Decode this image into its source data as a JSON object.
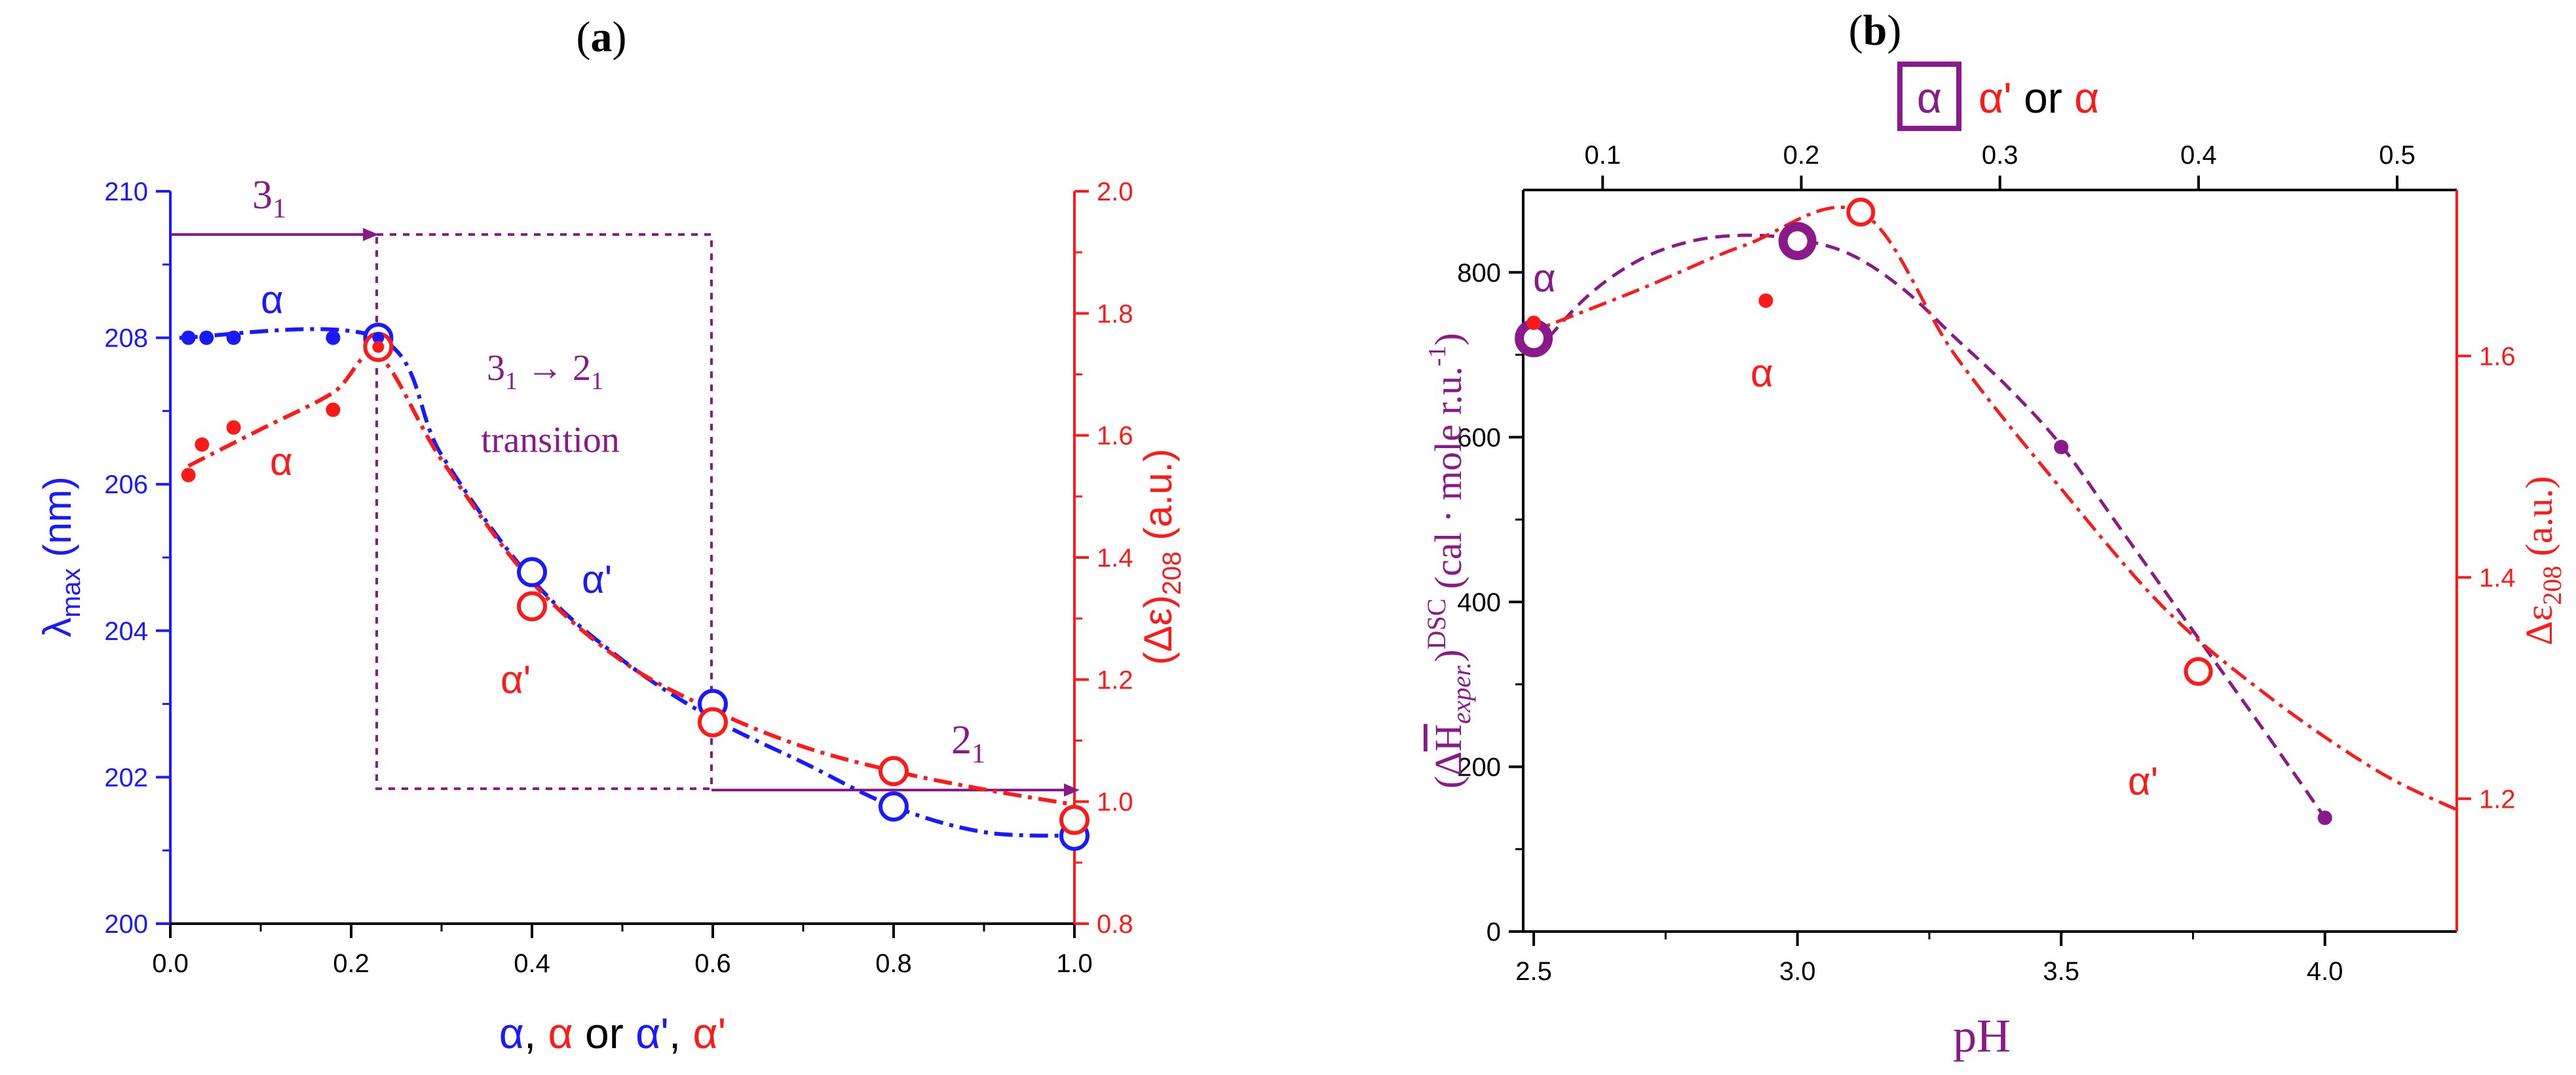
{
  "colors": {
    "blue": "#1a1aff",
    "red": "#ff1a1a",
    "purple": "#8a1a8a",
    "black": "#000000"
  },
  "chart_data": [
    {
      "type": "line",
      "title": "(a)",
      "title_bold": "a",
      "x_axis": {
        "range": [
          0,
          1.0
        ],
        "ticks": [
          "0.0",
          "0.2",
          "0.4",
          "0.6",
          "0.8",
          "1.0"
        ],
        "tick_values": [
          0,
          0.2,
          0.4,
          0.6,
          0.8,
          1.0
        ],
        "label_parts": [
          "α",
          ", ",
          "α",
          " or ",
          "α'",
          ", ",
          "α'"
        ]
      },
      "y_left": {
        "range": [
          200,
          210
        ],
        "ticks": [
          "200",
          "202",
          "204",
          "206",
          "208",
          "210"
        ],
        "tick_values": [
          200,
          202,
          204,
          206,
          208,
          210
        ],
        "label_main": "λ",
        "label_sub": "max",
        "label_unit": " (nm)"
      },
      "y_right": {
        "range": [
          0.8,
          2.0
        ],
        "ticks": [
          "0.8",
          "1.0",
          "1.2",
          "1.4",
          "1.6",
          "1.8",
          "2.0"
        ],
        "tick_values": [
          0.8,
          1.0,
          1.2,
          1.4,
          1.6,
          1.8,
          2.0
        ],
        "label_pre": "(Δε)",
        "label_sub": "208",
        "label_unit": " (a.u.)"
      },
      "series": [
        {
          "name": "λmax small points",
          "axis": "left",
          "color": "blue",
          "marker": "dot",
          "x": [
            0.02,
            0.04,
            0.07,
            0.18
          ],
          "y": [
            208,
            208,
            208,
            208
          ]
        },
        {
          "name": "λmax open circles",
          "axis": "left",
          "color": "blue",
          "marker": "circle",
          "x": [
            0.23,
            0.4,
            0.6,
            0.8,
            1.0
          ],
          "y": [
            208.0,
            204.8,
            203.0,
            201.6,
            201.2
          ]
        },
        {
          "name": "(Δε)208 small points",
          "axis": "right",
          "color": "red",
          "marker": "dot",
          "x": [
            0.02,
            0.035,
            0.07,
            0.18
          ],
          "y": [
            1.535,
            1.585,
            1.613,
            1.642
          ]
        },
        {
          "name": "(Δε)208 open circles",
          "axis": "right",
          "color": "red",
          "marker": "circle",
          "x": [
            0.23,
            0.4,
            0.6,
            0.8,
            1.0
          ],
          "y": [
            1.745,
            1.32,
            1.13,
            1.05,
            0.97
          ]
        }
      ],
      "fits": [
        {
          "axis": "left",
          "color": "blue",
          "x": [
            0.01,
            0.23,
            0.3,
            0.4,
            0.5,
            0.6,
            0.7,
            0.8,
            0.9,
            1.0
          ],
          "y": [
            208.0,
            208.0,
            206.4,
            204.7,
            203.6,
            202.8,
            202.2,
            201.6,
            201.25,
            201.2
          ]
        },
        {
          "axis": "right",
          "color": "red",
          "x": [
            0.02,
            0.1,
            0.18,
            0.23,
            0.3,
            0.4,
            0.5,
            0.6,
            0.7,
            0.8,
            0.9,
            1.0
          ],
          "y": [
            1.55,
            1.61,
            1.67,
            1.73,
            1.56,
            1.36,
            1.23,
            1.15,
            1.09,
            1.05,
            1.02,
            0.995
          ]
        }
      ],
      "annotations": {
        "alpha": "α",
        "alpha_prime": "α'",
        "state31": "3",
        "state31_sub": "1",
        "transition_main": "3",
        "transition_sub1": "1",
        "transition_arrow": " → 2",
        "transition_sub2": "1",
        "transition_word": "transition",
        "state21": "2",
        "state21_sub": "1"
      }
    },
    {
      "type": "line",
      "title": "(b)",
      "title_bold": "b",
      "x_axis": {
        "range": [
          2.48,
          4.25
        ],
        "ticks": [
          "2.5",
          "3.0",
          "3.5",
          "4.0"
        ],
        "tick_values": [
          2.5,
          3.0,
          3.5,
          4.0
        ],
        "label": "pH"
      },
      "x_top": {
        "range": [
          0.06,
          0.53
        ],
        "ticks": [
          "0.1",
          "0.2",
          "0.3",
          "0.4",
          "0.5"
        ],
        "tick_values": [
          0.1,
          0.2,
          0.3,
          0.4,
          0.5
        ],
        "label_boxed": "α",
        "label_rest1": "α'",
        "label_or": " or ",
        "label_rest2": "α"
      },
      "y_left": {
        "range": [
          0,
          900
        ],
        "ticks": [
          "0",
          "200",
          "400",
          "600",
          "800"
        ],
        "tick_values": [
          0,
          200,
          400,
          600,
          800
        ],
        "label_pre": "(Δ",
        "label_H": "H",
        "label_sub": "exper.",
        "label_close": ")",
        "label_sup": "DSC",
        "label_unit": " (cal · mole r.u.",
        "label_unit_sup": "-1",
        "label_unit_close": ")"
      },
      "y_right": {
        "range": [
          1.08,
          1.75
        ],
        "ticks": [
          "1.2",
          "1.4",
          "1.6"
        ],
        "tick_values": [
          1.2,
          1.4,
          1.6
        ],
        "label_pre": "Δε",
        "label_sub": "208",
        "label_unit": " (a.u.)"
      },
      "series": [
        {
          "name": "ΔH DSC",
          "axis": "left",
          "color": "purple",
          "x": [
            2.5,
            3.0,
            3.5,
            4.0
          ],
          "y": [
            720,
            838,
            588,
            138
          ],
          "marker": [
            "bigcircle",
            "bigcircle",
            "dot",
            "dot"
          ]
        },
        {
          "name": "Δε208",
          "axis": "right",
          "color": "red",
          "x": [
            2.5,
            2.94,
            3.12,
            3.76
          ],
          "y": [
            1.63,
            1.65,
            1.73,
            1.315
          ],
          "marker": [
            "dot",
            "dot",
            "circle",
            "circle"
          ]
        }
      ],
      "fits": [
        {
          "axis": "left",
          "color": "purple",
          "x": [
            2.5,
            2.6,
            2.7,
            2.8,
            2.9,
            3.0,
            3.1,
            3.2,
            3.3,
            3.4,
            3.5,
            3.6,
            3.7,
            3.8,
            3.9,
            4.0
          ],
          "y": [
            700,
            770,
            815,
            838,
            845,
            840,
            822,
            780,
            720,
            660,
            590,
            500,
            410,
            320,
            230,
            138
          ]
        },
        {
          "axis": "right",
          "color": "red",
          "x": [
            2.48,
            2.7,
            2.9,
            3.12,
            3.3,
            3.5,
            3.7,
            3.9,
            4.1,
            4.25
          ],
          "y": [
            1.619,
            1.66,
            1.7,
            1.73,
            1.6,
            1.48,
            1.37,
            1.29,
            1.225,
            1.19
          ]
        }
      ],
      "annotations": {
        "alpha1": "α",
        "alpha2": "α",
        "alpha_prime": "α'"
      }
    }
  ]
}
